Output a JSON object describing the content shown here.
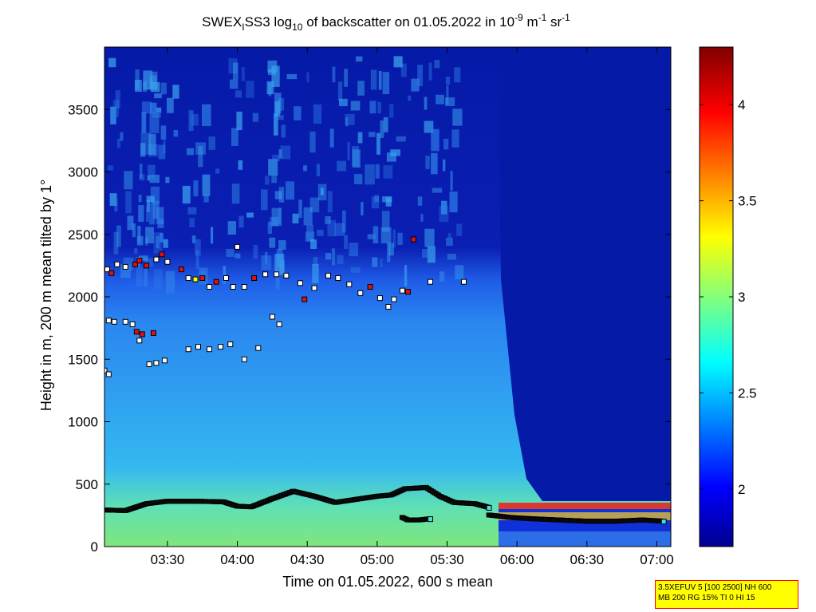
{
  "chart_data": {
    "type": "heatmap",
    "title_parts": {
      "pre": "SWEX",
      "sub1": "I",
      "mid": "SS3 log",
      "sub2": "10",
      "post1": " of backscatter on 01.05.2022 in 10",
      "sup1": "-9",
      "post2": " m",
      "sup2": "-1",
      "post3": " sr",
      "sup3": "-1"
    },
    "xlabel": "Time on 01.05.2022, 600 s mean",
    "ylabel": "Height in m, 200 m mean tilted by 1°",
    "xlim_hours": [
      3.05,
      7.1
    ],
    "ylim": [
      0,
      4000
    ],
    "x_ticks": [
      {
        "value": 3.5,
        "label": "03:30"
      },
      {
        "value": 4.0,
        "label": "04:00"
      },
      {
        "value": 4.5,
        "label": "04:30"
      },
      {
        "value": 5.0,
        "label": "05:00"
      },
      {
        "value": 5.5,
        "label": "05:30"
      },
      {
        "value": 6.0,
        "label": "06:00"
      },
      {
        "value": 6.5,
        "label": "06:30"
      },
      {
        "value": 7.0,
        "label": "07:00"
      }
    ],
    "y_ticks": [
      0,
      500,
      1000,
      1500,
      2000,
      2500,
      3000,
      3500
    ],
    "colorbar": {
      "range": [
        1.7,
        4.3
      ],
      "ticks": [
        {
          "value": 2,
          "label": "2"
        },
        {
          "value": 2.5,
          "label": "2.5"
        },
        {
          "value": 3,
          "label": "3"
        },
        {
          "value": 3.5,
          "label": "3.5"
        },
        {
          "value": 4,
          "label": "4"
        }
      ],
      "colormap": "jet"
    },
    "mixing_layer": {
      "x": [
        3.05,
        3.2,
        3.35,
        3.5,
        3.7,
        3.9,
        4.0,
        4.1,
        4.25,
        4.4,
        4.55,
        4.7,
        4.85,
        5.0,
        5.1,
        5.2,
        5.35,
        5.45,
        5.55,
        5.7,
        5.8
      ],
      "y": [
        290,
        285,
        340,
        360,
        360,
        355,
        320,
        315,
        380,
        440,
        400,
        350,
        375,
        400,
        410,
        460,
        470,
        400,
        350,
        340,
        310
      ]
    },
    "lower_layer": {
      "x": [
        5.8,
        5.95,
        6.1,
        6.3,
        6.5,
        6.7,
        6.9,
        7.05
      ],
      "y": [
        250,
        230,
        220,
        210,
        200,
        200,
        210,
        200
      ]
    },
    "short_segment": {
      "x": [
        5.18,
        5.22,
        5.3,
        5.38
      ],
      "y": [
        230,
        210,
        210,
        220
      ]
    },
    "cloud_base_points": [
      {
        "x": 3.07,
        "y": 2220,
        "c": "white"
      },
      {
        "x": 3.1,
        "y": 2190,
        "c": "red"
      },
      {
        "x": 3.14,
        "y": 2260,
        "c": "white"
      },
      {
        "x": 3.2,
        "y": 2240,
        "c": "white"
      },
      {
        "x": 3.27,
        "y": 2260,
        "c": "red"
      },
      {
        "x": 3.3,
        "y": 2290,
        "c": "red"
      },
      {
        "x": 3.35,
        "y": 2250,
        "c": "red"
      },
      {
        "x": 3.42,
        "y": 2300,
        "c": "white"
      },
      {
        "x": 3.46,
        "y": 2340,
        "c": "red"
      },
      {
        "x": 3.5,
        "y": 2280,
        "c": "white"
      },
      {
        "x": 3.6,
        "y": 2220,
        "c": "red"
      },
      {
        "x": 3.65,
        "y": 2150,
        "c": "white"
      },
      {
        "x": 3.7,
        "y": 2140,
        "c": "yellow"
      },
      {
        "x": 3.75,
        "y": 2150,
        "c": "red"
      },
      {
        "x": 3.8,
        "y": 2080,
        "c": "white"
      },
      {
        "x": 3.85,
        "y": 2120,
        "c": "red"
      },
      {
        "x": 3.92,
        "y": 2150,
        "c": "white"
      },
      {
        "x": 3.97,
        "y": 2080,
        "c": "white"
      },
      {
        "x": 4.05,
        "y": 2080,
        "c": "white"
      },
      {
        "x": 4.12,
        "y": 2150,
        "c": "red"
      },
      {
        "x": 4.2,
        "y": 2180,
        "c": "white"
      },
      {
        "x": 4.28,
        "y": 2180,
        "c": "white"
      },
      {
        "x": 4.35,
        "y": 2170,
        "c": "white"
      },
      {
        "x": 4.45,
        "y": 2110,
        "c": "white"
      },
      {
        "x": 4.48,
        "y": 1980,
        "c": "red"
      },
      {
        "x": 4.55,
        "y": 2070,
        "c": "white"
      },
      {
        "x": 4.65,
        "y": 2170,
        "c": "white"
      },
      {
        "x": 4.72,
        "y": 2150,
        "c": "white"
      },
      {
        "x": 4.8,
        "y": 2100,
        "c": "white"
      },
      {
        "x": 4.88,
        "y": 2030,
        "c": "white"
      },
      {
        "x": 4.95,
        "y": 2080,
        "c": "red"
      },
      {
        "x": 5.02,
        "y": 1990,
        "c": "white"
      },
      {
        "x": 5.08,
        "y": 1920,
        "c": "white"
      },
      {
        "x": 5.12,
        "y": 1980,
        "c": "white"
      },
      {
        "x": 5.18,
        "y": 2050,
        "c": "white"
      },
      {
        "x": 5.22,
        "y": 2040,
        "c": "red"
      },
      {
        "x": 5.26,
        "y": 2460,
        "c": "red"
      },
      {
        "x": 5.38,
        "y": 2120,
        "c": "white"
      },
      {
        "x": 5.62,
        "y": 2120,
        "c": "white"
      },
      {
        "x": 4.0,
        "y": 2400,
        "c": "white"
      },
      {
        "x": 3.08,
        "y": 1810,
        "c": "white"
      },
      {
        "x": 3.12,
        "y": 1800,
        "c": "white"
      },
      {
        "x": 3.2,
        "y": 1800,
        "c": "white"
      },
      {
        "x": 3.25,
        "y": 1780,
        "c": "white"
      },
      {
        "x": 3.28,
        "y": 1720,
        "c": "red"
      },
      {
        "x": 3.32,
        "y": 1700,
        "c": "red"
      },
      {
        "x": 3.4,
        "y": 1710,
        "c": "red"
      },
      {
        "x": 3.3,
        "y": 1650,
        "c": "white"
      },
      {
        "x": 3.37,
        "y": 1460,
        "c": "white"
      },
      {
        "x": 3.42,
        "y": 1470,
        "c": "white"
      },
      {
        "x": 3.48,
        "y": 1490,
        "c": "white"
      },
      {
        "x": 3.65,
        "y": 1580,
        "c": "white"
      },
      {
        "x": 3.72,
        "y": 1600,
        "c": "white"
      },
      {
        "x": 3.8,
        "y": 1580,
        "c": "white"
      },
      {
        "x": 3.88,
        "y": 1600,
        "c": "white"
      },
      {
        "x": 3.95,
        "y": 1620,
        "c": "white"
      },
      {
        "x": 4.05,
        "y": 1500,
        "c": "white"
      },
      {
        "x": 4.15,
        "y": 1590,
        "c": "white"
      },
      {
        "x": 4.25,
        "y": 1840,
        "c": "white"
      },
      {
        "x": 4.3,
        "y": 1780,
        "c": "white"
      },
      {
        "x": 3.05,
        "y": 1410,
        "c": "white"
      },
      {
        "x": 3.08,
        "y": 1380,
        "c": "white"
      }
    ]
  },
  "info_box": {
    "line1": "3.5XEFUV 5 [100 2500] NH 600",
    "line2": "MB 200 RG 15% TI 0 HI 15"
  }
}
